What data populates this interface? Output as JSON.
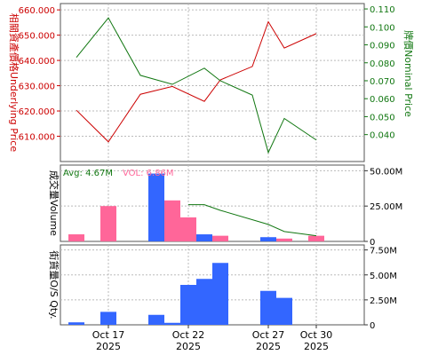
{
  "chart_data": [
    {
      "panel": "price",
      "type": "line",
      "x": [
        "2025-10-15",
        "2025-10-17",
        "2025-10-19",
        "2025-10-21",
        "2025-10-23",
        "2025-10-24",
        "2025-10-26",
        "2025-10-27",
        "2025-10-28",
        "2025-10-30"
      ],
      "series": [
        {
          "name": "Underlying Price",
          "axis": "left",
          "color": "#cc0000",
          "values": [
            620300,
            607800,
            626600,
            629700,
            623800,
            632300,
            637600,
            655300,
            644900,
            650600
          ]
        },
        {
          "name": "Nominal Price",
          "axis": "right",
          "color": "#117711",
          "values": [
            0.083,
            0.105,
            0.073,
            0.068,
            0.077,
            0.07,
            0.062,
            0.03,
            0.049,
            0.037
          ]
        }
      ],
      "left_axis": {
        "label": "相關資產價格Underlying Price",
        "ylim": [
          600000,
          662500
        ],
        "ticks": [
          "660.000",
          "650.000",
          "640.000",
          "630.000",
          "620.000",
          "610.000"
        ],
        "tick_values": [
          660000,
          650000,
          640000,
          630000,
          620000,
          610000
        ]
      },
      "right_axis": {
        "label": "牌價Nominal Price",
        "ylim": [
          0.025,
          0.113
        ],
        "ticks": [
          "0.110",
          "0.100",
          "0.090",
          "0.080",
          "0.070",
          "0.060",
          "0.050",
          "0.040"
        ],
        "tick_values": [
          0.11,
          0.1,
          0.09,
          0.08,
          0.07,
          0.06,
          0.05,
          0.04
        ]
      },
      "grid": true
    },
    {
      "panel": "volume",
      "type": "bar",
      "categories": [
        "Oct 15",
        "Oct 17",
        "Oct 20",
        "Oct 21",
        "Oct 22",
        "Oct 23",
        "Oct 24",
        "Oct 27",
        "Oct 28",
        "Oct 30"
      ],
      "values": [
        5000000,
        25000000,
        48000000,
        29000000,
        17000000,
        5000000,
        4000000,
        3000000,
        2000000,
        4000000
      ],
      "bar_colors": [
        "#ff6699",
        "#ff6699",
        "#3366ff",
        "#ff6699",
        "#ff6699",
        "#3366ff",
        "#ff6699",
        "#3366ff",
        "#ff6699",
        "#ff6699"
      ],
      "avg_line": {
        "name": "Avg",
        "color": "#117711",
        "values": [
          null,
          null,
          null,
          null,
          26000000,
          26000000,
          22000000,
          12000000,
          7000000,
          4000000
        ]
      },
      "legend_avg": "Avg: 4.67M",
      "legend_vol": "VOL: 6.86M",
      "axis": {
        "label": "成交量Volume",
        "ylim": [
          0,
          54000000
        ],
        "ticks": [
          "50.00M",
          "25.00M",
          "0"
        ],
        "tick_values": [
          50000000,
          25000000,
          0
        ]
      },
      "grid": true
    },
    {
      "panel": "os_qty",
      "type": "bar",
      "categories": [
        "Oct 15",
        "Oct 17",
        "Oct 20",
        "Oct 21",
        "Oct 22",
        "Oct 23",
        "Oct 24",
        "Oct 27",
        "Oct 28"
      ],
      "values": [
        250000,
        1300000,
        1000000,
        200000,
        4000000,
        4600000,
        6200000,
        3400000,
        2700000
      ],
      "bar_color": "#3366ff",
      "axis": {
        "label": "街貨量O/S Qty.",
        "ylim": [
          0,
          8000000
        ],
        "ticks": [
          "7.50M",
          "5.00M",
          "2.50M",
          "0"
        ],
        "tick_values": [
          7500000,
          5000000,
          2500000,
          0
        ]
      },
      "grid": true
    }
  ],
  "x_axis": {
    "ticks": [
      {
        "date": "2025-10-17",
        "day": "Oct 17",
        "year": "2025"
      },
      {
        "date": "2025-10-22",
        "day": "Oct 22",
        "year": "2025"
      },
      {
        "date": "2025-10-27",
        "day": "Oct 27",
        "year": "2025"
      },
      {
        "date": "2025-10-30",
        "day": "Oct 30",
        "year": "2025"
      }
    ]
  }
}
